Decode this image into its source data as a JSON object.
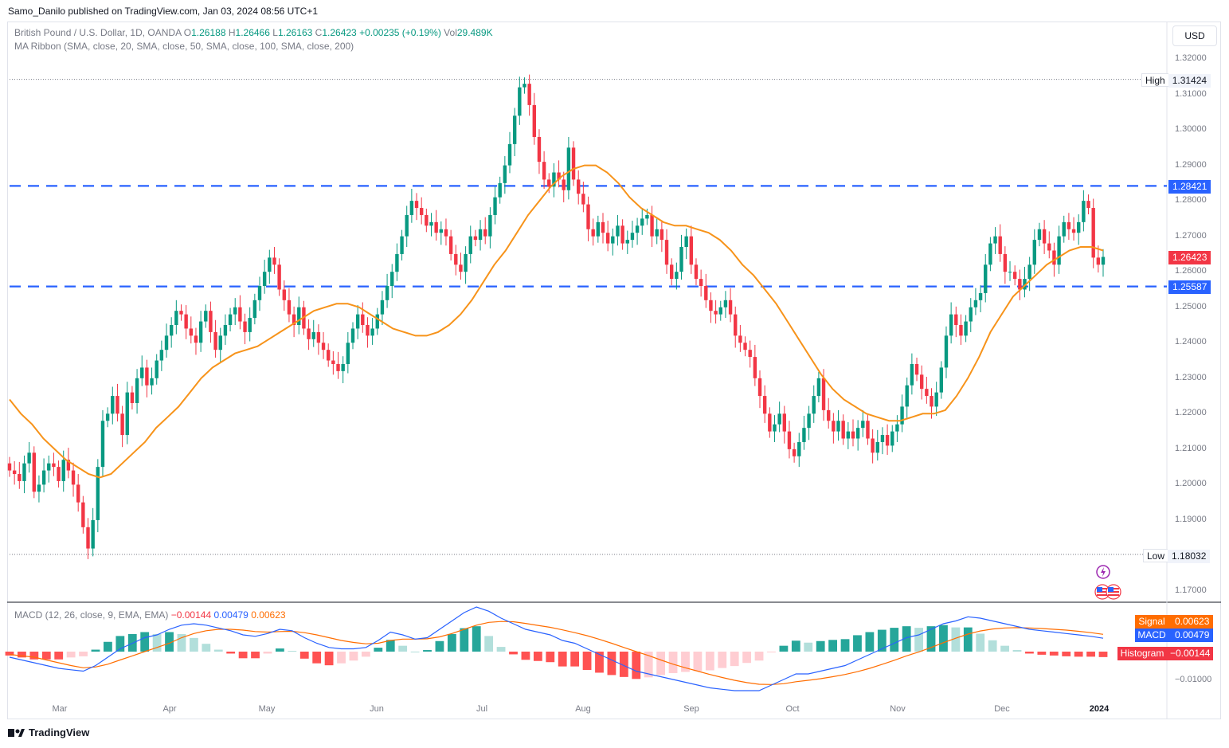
{
  "header": {
    "publisher": "Samo_Danilo published on TradingView.com, Jan 03, 2024 08:56 UTC+1"
  },
  "legend": {
    "symbol": "British Pound / U.S. Dollar, 1D, OANDA",
    "o_label": "O",
    "o": "1.26188",
    "h_label": "H",
    "h": "1.26466",
    "l_label": "L",
    "l": "1.26163",
    "c_label": "C",
    "c": "1.26423",
    "change": "+0.00235 (+0.19%)",
    "vol_label": "Vol",
    "vol": "29.489K",
    "ma_ribbon": "MA Ribbon (SMA, close, 20, SMA, close, 50, SMA, close, 100, SMA, close, 200)",
    "macd": "MACD (12, 26, close, 9, EMA, EMA)",
    "macd_hist": "−0.00144",
    "macd_macd": "0.00479",
    "macd_signal": "0.00623"
  },
  "currency_button": "USD",
  "price_axis": {
    "ticks": [
      "1.32000",
      "1.31000",
      "1.30000",
      "1.29000",
      "1.28000",
      "1.27000",
      "1.26000",
      "1.25000",
      "1.24000",
      "1.23000",
      "1.22000",
      "1.21000",
      "1.20000",
      "1.19000",
      "1.17000"
    ],
    "tick_values": [
      1.32,
      1.31,
      1.3,
      1.29,
      1.28,
      1.27,
      1.26,
      1.25,
      1.24,
      1.23,
      1.22,
      1.21,
      1.2,
      1.19,
      1.17
    ],
    "high_label": "High",
    "high_value": "1.31424",
    "low_label": "Low",
    "low_value": "1.18032",
    "resistance_value": "1.28421",
    "support_value": "1.25587",
    "last_price": "1.26423"
  },
  "macd_axis": {
    "tick": "−0.01000",
    "signal_label": "Signal",
    "signal_value": "0.00623",
    "macd_label": "MACD",
    "macd_value": "0.00479",
    "hist_label": "Histogram",
    "hist_value": "−0.00144"
  },
  "time_axis": {
    "labels": [
      "Mar",
      "Apr",
      "May",
      "Jun",
      "Jul",
      "Aug",
      "Sep",
      "Oct",
      "Nov",
      "Dec",
      "2024"
    ]
  },
  "footer": {
    "brand": "TradingView"
  },
  "colors": {
    "up": "#089981",
    "down": "#f23645",
    "ma": "#f7931a",
    "level": "#2962ff",
    "macd": "#2962ff",
    "signal": "#ff6d00"
  },
  "chart_data": {
    "type": "candlestick",
    "title": "British Pound / U.S. Dollar, 1D, OANDA",
    "x_range": [
      "2023-02-24",
      "2024-01-03"
    ],
    "ylim": [
      1.165,
      1.325
    ],
    "horizontal_levels": [
      1.28421,
      1.25587
    ],
    "high": 1.31424,
    "low": 1.18032,
    "last": 1.26423,
    "closes": [
      1.204,
      1.203,
      1.201,
      1.206,
      1.209,
      1.198,
      1.2,
      1.204,
      1.206,
      1.205,
      1.201,
      1.207,
      1.204,
      1.2,
      1.195,
      1.188,
      1.182,
      1.19,
      1.205,
      1.218,
      1.22,
      1.225,
      1.22,
      1.214,
      1.226,
      1.223,
      1.23,
      1.233,
      1.228,
      1.23,
      1.235,
      1.238,
      1.242,
      1.245,
      1.249,
      1.248,
      1.244,
      1.242,
      1.24,
      1.246,
      1.249,
      1.243,
      1.238,
      1.242,
      1.245,
      1.248,
      1.25,
      1.246,
      1.243,
      1.247,
      1.252,
      1.256,
      1.26,
      1.264,
      1.262,
      1.255,
      1.252,
      1.248,
      1.245,
      1.25,
      1.244,
      1.241,
      1.243,
      1.24,
      1.238,
      1.235,
      1.234,
      1.232,
      1.234,
      1.24,
      1.244,
      1.248,
      1.245,
      1.242,
      1.244,
      1.248,
      1.252,
      1.256,
      1.26,
      1.265,
      1.27,
      1.276,
      1.28,
      1.278,
      1.276,
      1.273,
      1.274,
      1.271,
      1.272,
      1.27,
      1.265,
      1.262,
      1.26,
      1.265,
      1.27,
      1.269,
      1.272,
      1.27,
      1.276,
      1.281,
      1.285,
      1.29,
      1.296,
      1.304,
      1.312,
      1.313,
      1.307,
      1.298,
      1.291,
      1.286,
      1.284,
      1.288,
      1.286,
      1.283,
      1.295,
      1.286,
      1.282,
      1.279,
      1.272,
      1.27,
      1.274,
      1.271,
      1.268,
      1.27,
      1.273,
      1.268,
      1.269,
      1.271,
      1.273,
      1.275,
      1.276,
      1.27,
      1.272,
      1.269,
      1.262,
      1.258,
      1.26,
      1.267,
      1.27,
      1.262,
      1.258,
      1.256,
      1.252,
      1.249,
      1.248,
      1.25,
      1.252,
      1.248,
      1.242,
      1.24,
      1.238,
      1.236,
      1.23,
      1.225,
      1.22,
      1.215,
      1.217,
      1.22,
      1.215,
      1.21,
      1.208,
      1.212,
      1.216,
      1.22,
      1.225,
      1.23,
      1.221,
      1.218,
      1.215,
      1.218,
      1.213,
      1.215,
      1.213,
      1.216,
      1.218,
      1.213,
      1.209,
      1.212,
      1.214,
      1.211,
      1.215,
      1.217,
      1.222,
      1.228,
      1.234,
      1.231,
      1.227,
      1.225,
      1.222,
      1.226,
      1.233,
      1.242,
      1.248,
      1.245,
      1.242,
      1.246,
      1.25,
      1.252,
      1.254,
      1.262,
      1.268,
      1.27,
      1.265,
      1.26,
      1.26,
      1.258,
      1.255,
      1.258,
      1.262,
      1.269,
      1.272,
      1.268,
      1.266,
      1.262,
      1.27,
      1.274,
      1.272,
      1.271,
      1.274,
      1.28,
      1.278,
      1.264,
      1.262,
      1.2642
    ],
    "ma20": [
      1.224,
      1.22,
      1.217,
      1.213,
      1.21,
      1.207,
      1.205,
      1.203,
      1.202,
      1.203,
      1.206,
      1.209,
      1.212,
      1.216,
      1.219,
      1.222,
      1.226,
      1.23,
      1.233,
      1.235,
      1.237,
      1.238,
      1.239,
      1.241,
      1.243,
      1.245,
      1.247,
      1.249,
      1.25,
      1.251,
      1.251,
      1.25,
      1.248,
      1.246,
      1.244,
      1.243,
      1.242,
      1.242,
      1.243,
      1.245,
      1.248,
      1.252,
      1.257,
      1.262,
      1.266,
      1.271,
      1.276,
      1.28,
      1.284,
      1.287,
      1.289,
      1.29,
      1.29,
      1.288,
      1.285,
      1.281,
      1.278,
      1.276,
      1.274,
      1.273,
      1.273,
      1.272,
      1.271,
      1.269,
      1.266,
      1.262,
      1.259,
      1.255,
      1.251,
      1.246,
      1.241,
      1.236,
      1.231,
      1.227,
      1.224,
      1.222,
      1.22,
      1.219,
      1.218,
      1.218,
      1.219,
      1.22,
      1.22,
      1.221,
      1.225,
      1.23,
      1.236,
      1.243,
      1.248,
      1.253,
      1.256,
      1.259,
      1.262,
      1.264,
      1.266,
      1.267,
      1.267,
      1.266
    ],
    "macd_line": [
      -0.002,
      -0.003,
      -0.004,
      -0.005,
      -0.006,
      -0.0065,
      -0.007,
      -0.005,
      -0.002,
      0.001,
      0.003,
      0.005,
      0.006,
      0.008,
      0.0095,
      0.01,
      0.0095,
      0.0085,
      0.0075,
      0.006,
      0.0055,
      0.0065,
      0.008,
      0.0075,
      0.005,
      0.003,
      0.0015,
      0.001,
      0.001,
      0.0015,
      0.004,
      0.007,
      0.006,
      0.0045,
      0.005,
      0.008,
      0.011,
      0.014,
      0.016,
      0.0145,
      0.012,
      0.01,
      0.008,
      0.007,
      0.006,
      0.004,
      0.003,
      0.001,
      -0.001,
      -0.003,
      -0.005,
      -0.007,
      -0.008,
      -0.009,
      -0.01,
      -0.011,
      -0.012,
      -0.013,
      -0.0135,
      -0.014,
      -0.014,
      -0.014,
      -0.012,
      -0.01,
      -0.008,
      -0.008,
      -0.007,
      -0.006,
      -0.005,
      -0.003,
      -0.001,
      0.001,
      0.003,
      0.005,
      0.006,
      0.008,
      0.01,
      0.011,
      0.0125,
      0.012,
      0.011,
      0.01,
      0.009,
      0.008,
      0.0075,
      0.007,
      0.0065,
      0.006,
      0.0055,
      0.0048
    ],
    "signal_line": [
      -0.001,
      -0.0015,
      -0.002,
      -0.003,
      -0.004,
      -0.005,
      -0.0058,
      -0.0055,
      -0.0045,
      -0.003,
      -0.0015,
      0.0,
      0.0015,
      0.003,
      0.005,
      0.0065,
      0.0075,
      0.008,
      0.008,
      0.0077,
      0.0072,
      0.007,
      0.0072,
      0.0073,
      0.0068,
      0.006,
      0.005,
      0.004,
      0.0033,
      0.0028,
      0.003,
      0.004,
      0.0045,
      0.0045,
      0.0046,
      0.0053,
      0.0065,
      0.008,
      0.0095,
      0.0105,
      0.0108,
      0.0107,
      0.0101,
      0.0094,
      0.0087,
      0.0078,
      0.0068,
      0.0057,
      0.0044,
      0.003,
      0.0015,
      0.0,
      -0.0014,
      -0.003,
      -0.0045,
      -0.0058,
      -0.007,
      -0.0082,
      -0.0093,
      -0.0103,
      -0.0111,
      -0.0117,
      -0.0118,
      -0.0115,
      -0.0108,
      -0.0103,
      -0.0097,
      -0.009,
      -0.0082,
      -0.0072,
      -0.006,
      -0.0046,
      -0.0031,
      -0.0015,
      -0.0001,
      0.0015,
      0.0032,
      0.0048,
      0.0063,
      0.0074,
      0.0081,
      0.0085,
      0.0086,
      0.0085,
      0.0083,
      0.008,
      0.0077,
      0.0073,
      0.0068,
      0.0062
    ]
  }
}
